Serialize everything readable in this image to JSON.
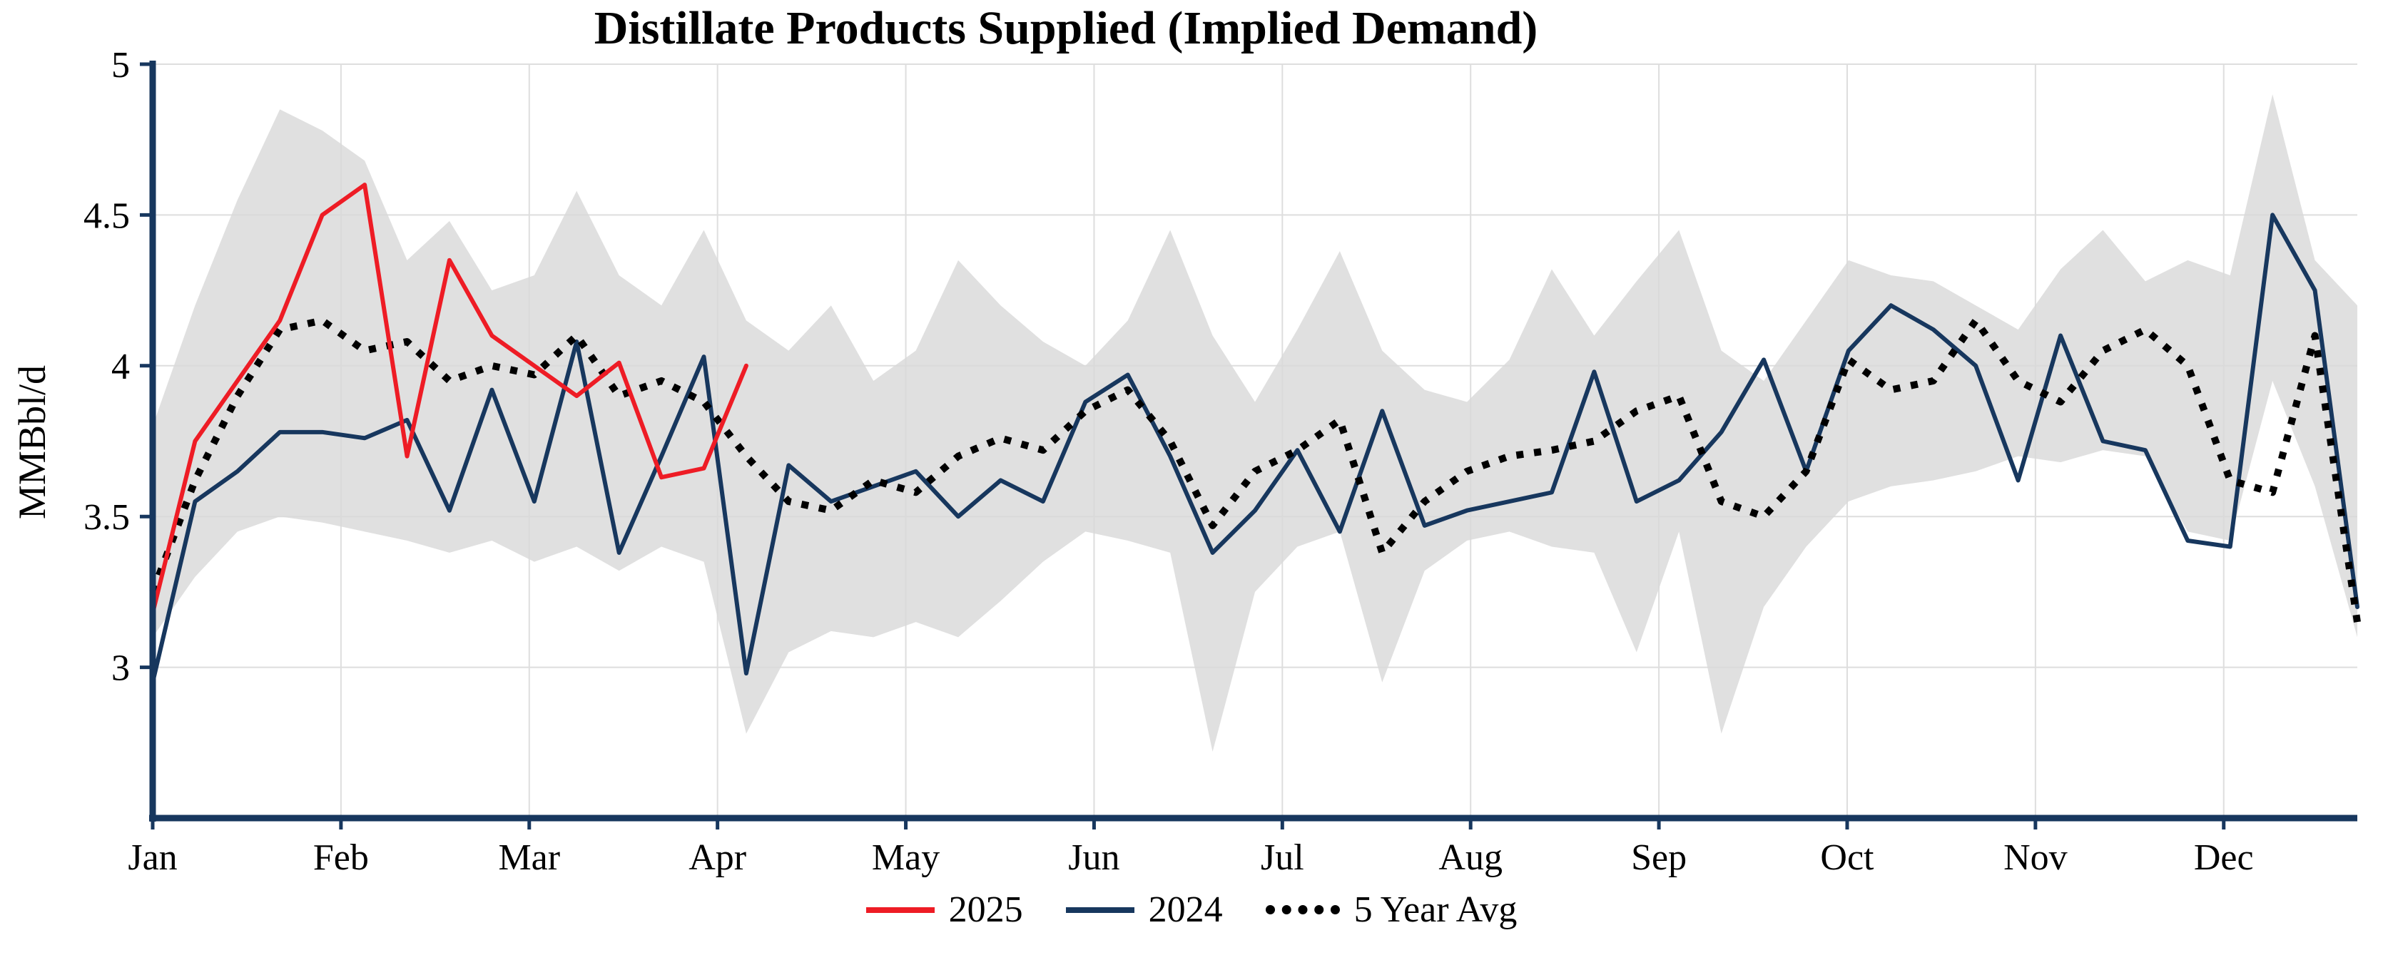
{
  "chart_data": {
    "type": "line",
    "title": "Distillate Products Supplied (Implied Demand)",
    "ylabel": "MMBbl/d",
    "xlabel": "",
    "x_unit": "weekly observations, Jan through Dec",
    "months": [
      "Jan",
      "Feb",
      "Mar",
      "Apr",
      "May",
      "Jun",
      "Jul",
      "Aug",
      "Sep",
      "Oct",
      "Nov",
      "Dec"
    ],
    "yticks": [
      3,
      3.5,
      4,
      4.5,
      5
    ],
    "ytick_labels": [
      "3",
      "3.5",
      "4",
      "4.5",
      "5"
    ],
    "ylim": [
      2.5,
      5
    ],
    "grid": true,
    "legend_position": "bottom",
    "series": [
      {
        "name": "2025",
        "color": "#ee1c25",
        "style": "solid",
        "values": [
          3.18,
          3.75,
          3.95,
          4.15,
          4.5,
          4.6,
          3.7,
          4.35,
          4.1,
          4.0,
          3.9,
          4.01,
          3.63,
          3.66,
          4.0
        ]
      },
      {
        "name": "2024",
        "color": "#17375e",
        "style": "solid",
        "values": [
          2.95,
          3.55,
          3.65,
          3.78,
          3.78,
          3.76,
          3.82,
          3.52,
          3.92,
          3.55,
          4.08,
          3.38,
          3.7,
          4.03,
          2.98,
          3.67,
          3.55,
          3.6,
          3.65,
          3.5,
          3.62,
          3.55,
          3.88,
          3.97,
          3.7,
          3.38,
          3.52,
          3.72,
          3.45,
          3.85,
          3.47,
          3.52,
          3.55,
          3.58,
          3.98,
          3.55,
          3.62,
          3.78,
          4.02,
          3.65,
          4.05,
          4.2,
          4.12,
          4.0,
          3.62,
          4.1,
          3.75,
          3.72,
          3.42,
          3.4,
          4.5,
          4.25,
          3.2
        ]
      },
      {
        "name": "5 Year Avg",
        "color": "#000000",
        "style": "dotted",
        "values": [
          3.25,
          3.62,
          3.9,
          4.12,
          4.15,
          4.05,
          4.08,
          3.95,
          4.0,
          3.97,
          4.1,
          3.9,
          3.95,
          3.88,
          3.7,
          3.55,
          3.52,
          3.62,
          3.58,
          3.7,
          3.76,
          3.72,
          3.85,
          3.92,
          3.75,
          3.47,
          3.65,
          3.72,
          3.82,
          3.38,
          3.55,
          3.65,
          3.7,
          3.72,
          3.75,
          3.85,
          3.9,
          3.55,
          3.5,
          3.65,
          4.02,
          3.92,
          3.95,
          4.15,
          3.95,
          3.88,
          4.05,
          4.12,
          4.0,
          3.62,
          3.58,
          4.1,
          3.15
        ]
      }
    ],
    "band": {
      "name": "5-year range (shaded)",
      "color": "#d8d8d8",
      "upper": [
        3.8,
        4.2,
        4.55,
        4.85,
        4.78,
        4.68,
        4.35,
        4.48,
        4.25,
        4.3,
        4.58,
        4.3,
        4.2,
        4.45,
        4.15,
        4.05,
        4.2,
        3.95,
        4.05,
        4.35,
        4.2,
        4.08,
        4.0,
        4.15,
        4.45,
        4.1,
        3.88,
        4.12,
        4.38,
        4.05,
        3.92,
        3.88,
        4.02,
        4.32,
        4.1,
        4.28,
        4.45,
        4.05,
        3.95,
        4.15,
        4.35,
        4.3,
        4.28,
        4.2,
        4.12,
        4.32,
        4.45,
        4.28,
        4.35,
        4.3,
        4.9,
        4.35,
        4.2
      ],
      "lower": [
        3.1,
        3.3,
        3.45,
        3.5,
        3.48,
        3.45,
        3.42,
        3.38,
        3.42,
        3.35,
        3.4,
        3.32,
        3.4,
        3.35,
        2.78,
        3.05,
        3.12,
        3.1,
        3.15,
        3.1,
        3.22,
        3.35,
        3.45,
        3.42,
        3.38,
        2.72,
        3.25,
        3.4,
        3.45,
        2.95,
        3.32,
        3.42,
        3.45,
        3.4,
        3.38,
        3.05,
        3.45,
        2.78,
        3.2,
        3.4,
        3.55,
        3.6,
        3.62,
        3.65,
        3.7,
        3.68,
        3.72,
        3.7,
        3.45,
        3.42,
        3.95,
        3.6,
        3.1
      ]
    }
  },
  "colors": {
    "axis": "#17375e",
    "grid": "#dedede",
    "band": "#d8d8d8",
    "text": "#000000",
    "background": "#ffffff"
  }
}
